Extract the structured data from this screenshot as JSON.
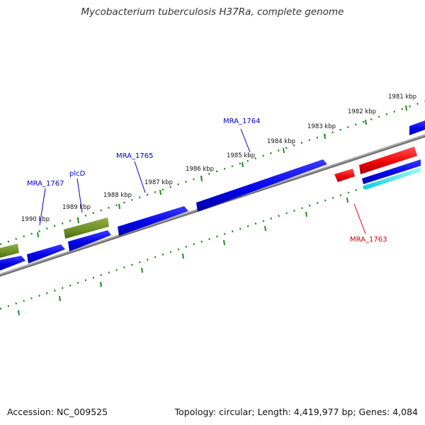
{
  "title": "Mycobacterium tuberculosis H37Ra, complete genome",
  "footer": {
    "accession": "Accession: NC_009525",
    "summary": "Topology: circular; Length: 4,419,977 bp; Genes: 4,084"
  },
  "scale_labels": [
    "1981 kbp",
    "1982 kbp",
    "1983 kbp",
    "1984 kbp",
    "1985 kbp",
    "1986 kbp",
    "1987 kbp",
    "1988 kbp",
    "1989 kbp",
    "1990 kbp"
  ],
  "gene_labels": [
    {
      "text": "MRA_1764",
      "color": "#0000cc"
    },
    {
      "text": "MRA_1765",
      "color": "#0000cc"
    },
    {
      "text": "MRA_1767",
      "color": "#0000cc"
    },
    {
      "text": "plcD",
      "color": "#0000cc"
    },
    {
      "text": "MRA_1763",
      "color": "#dd0000"
    }
  ],
  "colors": {
    "cds_forward": "#0000ee",
    "cds_reverse": "#ee0000",
    "gene_plcD": "#6b8e23",
    "rna": "#00e5ee",
    "backbone": "#888888",
    "tick": "#228b22"
  }
}
